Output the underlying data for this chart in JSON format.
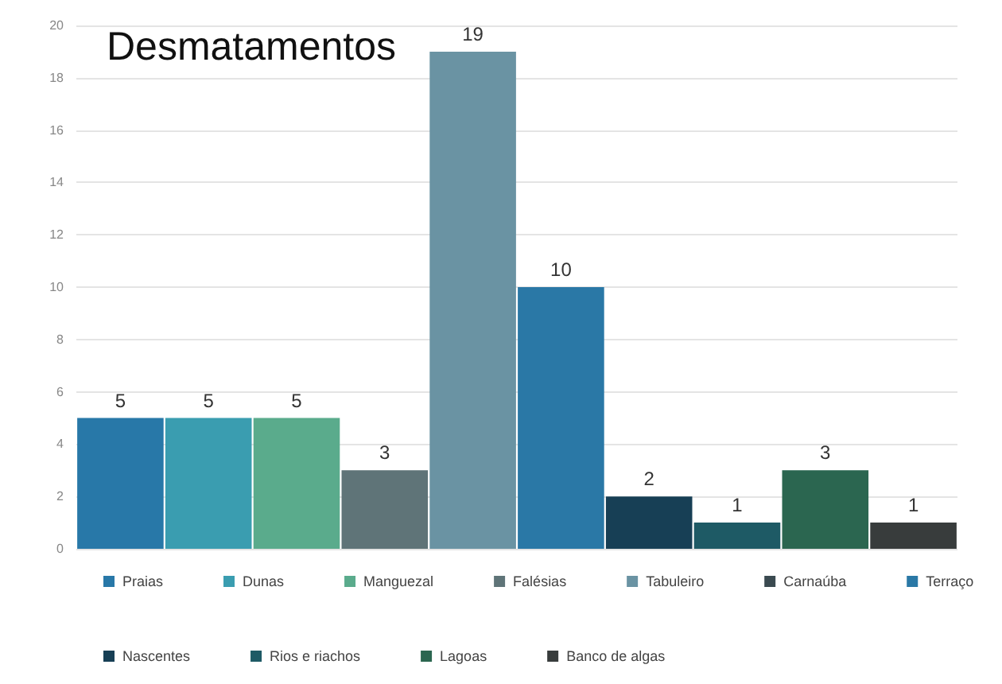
{
  "chart_data": {
    "type": "bar",
    "title": "Desmatamentos",
    "categories": [
      null,
      null,
      null,
      null,
      null,
      null,
      null,
      null,
      null,
      null
    ],
    "series": [
      {
        "name": "Praias",
        "color": "#2878a8",
        "values": [
          5,
          null,
          null,
          null,
          null,
          null,
          null,
          null,
          null,
          null
        ]
      },
      {
        "name": "Dunas",
        "color": "#3a9db0",
        "values": [
          null,
          5,
          null,
          null,
          null,
          null,
          null,
          null,
          null,
          null
        ]
      },
      {
        "name": "Manguezal",
        "color": "#5aab8c",
        "values": [
          null,
          null,
          5,
          null,
          null,
          null,
          null,
          null,
          null,
          null
        ]
      },
      {
        "name": "Falésias",
        "color": "#5f7478",
        "values": [
          null,
          null,
          null,
          3,
          null,
          null,
          null,
          null,
          null,
          null
        ]
      },
      {
        "name": "Tabuleiro",
        "color": "#6a93a3",
        "values": [
          null,
          null,
          null,
          null,
          19,
          null,
          null,
          null,
          null,
          null
        ]
      },
      {
        "name": "Carnaúba",
        "color": "#3a4a50",
        "values": [
          null,
          null,
          null,
          null,
          null,
          null,
          null,
          null,
          null,
          null
        ]
      },
      {
        "name": "Terraço",
        "color": "#2a78a6",
        "values": [
          null,
          null,
          null,
          null,
          null,
          10,
          null,
          null,
          null,
          null
        ]
      },
      {
        "name": "Nascentes",
        "color": "#173f55",
        "values": [
          null,
          null,
          null,
          null,
          null,
          null,
          2,
          null,
          null,
          null
        ]
      },
      {
        "name": "Rios e riachos",
        "color": "#1e5a65",
        "values": [
          null,
          null,
          null,
          null,
          null,
          null,
          null,
          1,
          null,
          null
        ]
      },
      {
        "name": "Lagoas",
        "color": "#2b6650",
        "values": [
          null,
          null,
          null,
          null,
          null,
          null,
          null,
          null,
          3,
          null
        ]
      },
      {
        "name": "Banco de algas",
        "color": "#383c3c",
        "values": [
          null,
          null,
          null,
          null,
          null,
          null,
          null,
          null,
          null,
          1
        ]
      }
    ],
    "ylim": [
      0,
      20
    ],
    "yticks": [
      0,
      2,
      4,
      6,
      8,
      10,
      12,
      14,
      16,
      18,
      20
    ],
    "grid": "y",
    "legend": "bottom",
    "data_labels": true
  }
}
